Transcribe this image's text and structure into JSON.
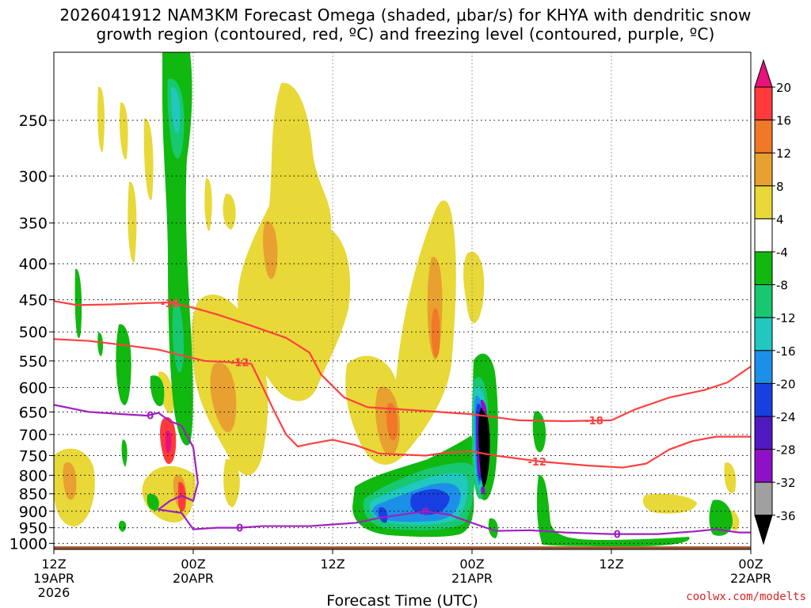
{
  "title_line1": "2026041912 NAM3KM Forecast Omega (shaded, μbar/s) for KHYA with dendritic snow",
  "title_line2": "growth region (contoured, red, ºC) and freezing level (contoured, purple, ºC)",
  "credit": "coolwx.com/modelts",
  "chart_data": {
    "type": "heatmap",
    "xlabel": "Forecast Time (UTC)",
    "x_ticks": [
      {
        "hour": 0,
        "label1": "12Z",
        "label2": "19APR",
        "label3": "2026"
      },
      {
        "hour": 12,
        "label1": "00Z",
        "label2": "20APR",
        "label3": ""
      },
      {
        "hour": 24,
        "label1": "12Z",
        "label2": "",
        "label3": ""
      },
      {
        "hour": 36,
        "label1": "00Z",
        "label2": "21APR",
        "label3": ""
      },
      {
        "hour": 48,
        "label1": "12Z",
        "label2": "",
        "label3": ""
      },
      {
        "hour": 60,
        "label1": "00Z",
        "label2": "22APR",
        "label3": ""
      }
    ],
    "x_range_hours": [
      0,
      60
    ],
    "y_ticks": [
      250,
      300,
      350,
      400,
      450,
      500,
      550,
      600,
      650,
      700,
      750,
      800,
      850,
      900,
      950,
      1000
    ],
    "y_range_hpa": [
      200,
      1020
    ],
    "colorbar": {
      "labels": [
        "20",
        "16",
        "12",
        "8",
        "4",
        "-4",
        "-8",
        "-12",
        "-16",
        "-20",
        "-24",
        "-28",
        "-32",
        "-36"
      ],
      "colors": [
        "#e8127c",
        "#ff3a3a",
        "#f07828",
        "#e8a030",
        "#e8d838",
        "#ffffff",
        "#10b810",
        "#18c870",
        "#20c8c0",
        "#1c90e8",
        "#1840e0",
        "#5018c0",
        "#9010c8",
        "#a0a0a0",
        "#000000"
      ]
    },
    "contours": [
      {
        "label": "-18",
        "color": "#ff4040",
        "points": [
          [
            0,
            452
          ],
          [
            2,
            458
          ],
          [
            5,
            457
          ],
          [
            8,
            455
          ],
          [
            10,
            454
          ],
          [
            12,
            462
          ],
          [
            14,
            472
          ],
          [
            17,
            490
          ],
          [
            20,
            510
          ],
          [
            22,
            535
          ],
          [
            23,
            575
          ],
          [
            25,
            620
          ],
          [
            27,
            640
          ],
          [
            32,
            648
          ],
          [
            36,
            655
          ],
          [
            40,
            668
          ],
          [
            44,
            670
          ],
          [
            48,
            668
          ],
          [
            50,
            645
          ],
          [
            53,
            620
          ],
          [
            56,
            605
          ],
          [
            58,
            590
          ],
          [
            60,
            560
          ]
        ],
        "label_at": [
          10,
          455
        ]
      },
      {
        "label": "-12",
        "color": "#ff4040",
        "points": [
          [
            0,
            512
          ],
          [
            3,
            515
          ],
          [
            6,
            522
          ],
          [
            9,
            530
          ],
          [
            11,
            540
          ],
          [
            13,
            550
          ],
          [
            15,
            552
          ],
          [
            17,
            555
          ],
          [
            18,
            600
          ],
          [
            19,
            650
          ],
          [
            20,
            700
          ],
          [
            21,
            728
          ],
          [
            22,
            722
          ],
          [
            24,
            712
          ],
          [
            26,
            725
          ],
          [
            28,
            745
          ],
          [
            32,
            750
          ],
          [
            34,
            742
          ],
          [
            36,
            740
          ],
          [
            38,
            750
          ],
          [
            42,
            765
          ],
          [
            46,
            775
          ],
          [
            49,
            780
          ],
          [
            51,
            770
          ],
          [
            53,
            735
          ],
          [
            55,
            715
          ],
          [
            57,
            705
          ],
          [
            60,
            705
          ]
        ],
        "label_at": [
          16,
          552
        ]
      },
      {
        "label": "0",
        "color": "#a020c0",
        "points": [
          [
            0,
            635
          ],
          [
            3,
            650
          ],
          [
            6,
            655
          ],
          [
            8,
            658
          ],
          [
            9,
            652
          ],
          [
            10,
            670
          ],
          [
            11,
            680
          ],
          [
            12,
            730
          ],
          [
            12.4,
            820
          ],
          [
            12,
            870
          ],
          [
            11,
            855
          ],
          [
            10,
            870
          ],
          [
            9,
            895
          ],
          [
            10,
            900
          ],
          [
            11,
            905
          ],
          [
            12,
            955
          ],
          [
            14,
            950
          ],
          [
            16,
            950
          ],
          [
            18,
            945
          ],
          [
            22,
            945
          ],
          [
            24,
            940
          ],
          [
            26,
            935
          ],
          [
            28,
            920
          ],
          [
            31,
            905
          ],
          [
            32,
            900
          ],
          [
            34,
            910
          ],
          [
            36,
            935
          ],
          [
            38,
            960
          ],
          [
            41,
            958
          ],
          [
            44,
            965
          ],
          [
            48,
            970
          ],
          [
            52,
            970
          ],
          [
            55,
            962
          ],
          [
            57,
            955
          ],
          [
            59,
            965
          ],
          [
            60,
            965
          ]
        ],
        "label_at": [
          16,
          950
        ]
      }
    ],
    "ground_hpa": 1010
  }
}
